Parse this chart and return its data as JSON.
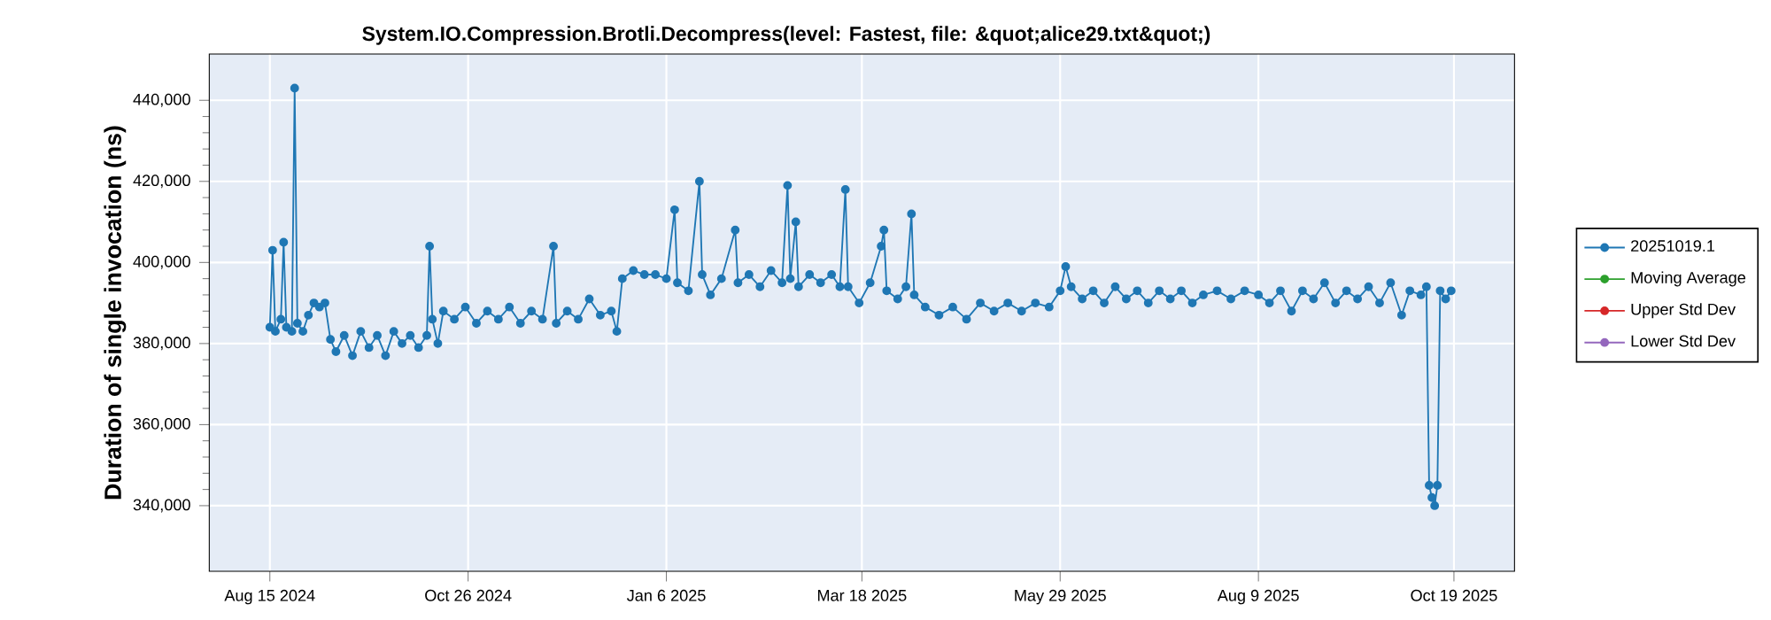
{
  "chart_data": {
    "type": "line",
    "title": "System.IO.Compression.Brotli.Decompress(level: Fastest, file: &quot;alice29.txt&quot;)",
    "ylabel": "Duration of single invocation (ns)",
    "x": [
      "2024-08-15",
      "2024-08-16",
      "2024-08-17",
      "2024-08-19",
      "2024-08-20",
      "2024-08-21",
      "2024-08-23",
      "2024-08-24",
      "2024-08-25",
      "2024-08-27",
      "2024-08-29",
      "2024-08-31",
      "2024-09-02",
      "2024-09-04",
      "2024-09-06",
      "2024-09-08",
      "2024-09-11",
      "2024-09-14",
      "2024-09-17",
      "2024-09-20",
      "2024-09-23",
      "2024-09-26",
      "2024-09-29",
      "2024-10-02",
      "2024-10-05",
      "2024-10-08",
      "2024-10-11",
      "2024-10-12",
      "2024-10-13",
      "2024-10-15",
      "2024-10-17",
      "2024-10-21",
      "2024-10-25",
      "2024-10-29",
      "2024-11-02",
      "2024-11-06",
      "2024-11-10",
      "2024-11-14",
      "2024-11-18",
      "2024-11-22",
      "2024-11-26",
      "2024-11-27",
      "2024-12-01",
      "2024-12-05",
      "2024-12-09",
      "2024-12-13",
      "2024-12-17",
      "2024-12-19",
      "2024-12-21",
      "2024-12-25",
      "2024-12-29",
      "2025-01-02",
      "2025-01-06",
      "2025-01-09",
      "2025-01-10",
      "2025-01-14",
      "2025-01-18",
      "2025-01-19",
      "2025-01-22",
      "2025-01-26",
      "2025-01-31",
      "2025-02-01",
      "2025-02-05",
      "2025-02-09",
      "2025-02-13",
      "2025-02-17",
      "2025-02-19",
      "2025-02-20",
      "2025-02-22",
      "2025-02-23",
      "2025-02-27",
      "2025-03-03",
      "2025-03-07",
      "2025-03-10",
      "2025-03-12",
      "2025-03-13",
      "2025-03-17",
      "2025-03-21",
      "2025-03-25",
      "2025-03-26",
      "2025-03-27",
      "2025-03-31",
      "2025-04-03",
      "2025-04-05",
      "2025-04-06",
      "2025-04-10",
      "2025-04-15",
      "2025-04-20",
      "2025-04-25",
      "2025-04-30",
      "2025-05-05",
      "2025-05-10",
      "2025-05-15",
      "2025-05-20",
      "2025-05-25",
      "2025-05-29",
      "2025-05-31",
      "2025-06-02",
      "2025-06-06",
      "2025-06-10",
      "2025-06-14",
      "2025-06-18",
      "2025-06-22",
      "2025-06-26",
      "2025-06-30",
      "2025-07-04",
      "2025-07-08",
      "2025-07-12",
      "2025-07-16",
      "2025-07-20",
      "2025-07-25",
      "2025-07-30",
      "2025-08-04",
      "2025-08-09",
      "2025-08-13",
      "2025-08-17",
      "2025-08-21",
      "2025-08-25",
      "2025-08-29",
      "2025-09-02",
      "2025-09-06",
      "2025-09-10",
      "2025-09-14",
      "2025-09-18",
      "2025-09-22",
      "2025-09-26",
      "2025-09-30",
      "2025-10-03",
      "2025-10-07",
      "2025-10-09",
      "2025-10-10",
      "2025-10-11",
      "2025-10-12",
      "2025-10-13",
      "2025-10-14",
      "2025-10-16",
      "2025-10-18"
    ],
    "series": [
      {
        "name": "20251019.1",
        "color": "#1f77b4",
        "values": [
          384000,
          403000,
          383000,
          386000,
          405000,
          384000,
          383000,
          443000,
          385000,
          383000,
          387000,
          390000,
          389000,
          390000,
          381000,
          378000,
          382000,
          377000,
          383000,
          379000,
          382000,
          377000,
          383000,
          380000,
          382000,
          379000,
          382000,
          404000,
          386000,
          380000,
          388000,
          386000,
          389000,
          385000,
          388000,
          386000,
          389000,
          385000,
          388000,
          386000,
          404000,
          385000,
          388000,
          386000,
          391000,
          387000,
          388000,
          383000,
          396000,
          398000,
          397000,
          397000,
          396000,
          413000,
          395000,
          393000,
          420000,
          397000,
          392000,
          396000,
          408000,
          395000,
          397000,
          394000,
          398000,
          395000,
          419000,
          396000,
          410000,
          394000,
          397000,
          395000,
          397000,
          394000,
          418000,
          394000,
          390000,
          395000,
          404000,
          408000,
          393000,
          391000,
          394000,
          412000,
          392000,
          389000,
          387000,
          389000,
          386000,
          390000,
          388000,
          390000,
          388000,
          390000,
          389000,
          393000,
          399000,
          394000,
          391000,
          393000,
          390000,
          394000,
          391000,
          393000,
          390000,
          393000,
          391000,
          393000,
          390000,
          392000,
          393000,
          391000,
          393000,
          392000,
          390000,
          393000,
          388000,
          393000,
          391000,
          395000,
          390000,
          393000,
          391000,
          394000,
          390000,
          395000,
          387000,
          393000,
          392000,
          394000,
          345000,
          342000,
          340000,
          345000,
          393000,
          391000,
          393000
        ]
      },
      {
        "name": "Moving Average",
        "color": "#2ca02c",
        "values": [
          null,
          null,
          null,
          null,
          null,
          null,
          null,
          null,
          null,
          null,
          null,
          null,
          null,
          null,
          null,
          null,
          null,
          null,
          null,
          null,
          null,
          null,
          null,
          null,
          null,
          null,
          null,
          null,
          null,
          null,
          null,
          null,
          null,
          null,
          null,
          null,
          null,
          null,
          null,
          null,
          null,
          null,
          null,
          null,
          null,
          null,
          null,
          null,
          null,
          null,
          null,
          null,
          null,
          null,
          null,
          null,
          null,
          null,
          null,
          null,
          null,
          null,
          null,
          null,
          null,
          null,
          null,
          null,
          null,
          null,
          null,
          null,
          null,
          null,
          null,
          null,
          null,
          null,
          null,
          null,
          null,
          null,
          null,
          null,
          null,
          null,
          null,
          null,
          null,
          null,
          null,
          null,
          null,
          null,
          null,
          null,
          null,
          null,
          null,
          null,
          null,
          null,
          null,
          null,
          null,
          null,
          null,
          null,
          null,
          null,
          null,
          null,
          null,
          null,
          null,
          null,
          null,
          null,
          null,
          null,
          null,
          null,
          null,
          null,
          null,
          null,
          null,
          null,
          null,
          null,
          null,
          null,
          null,
          null,
          null,
          null,
          null
        ]
      },
      {
        "name": "Upper Std Dev",
        "color": "#d62728",
        "values": [
          null,
          null,
          null,
          null,
          null,
          null,
          null,
          null,
          null,
          null,
          null,
          null,
          null,
          null,
          null,
          null,
          null,
          null,
          null,
          null,
          null,
          null,
          null,
          null,
          null,
          null,
          null,
          null,
          null,
          null,
          null,
          null,
          null,
          null,
          null,
          null,
          null,
          null,
          null,
          null,
          null,
          null,
          null,
          null,
          null,
          null,
          null,
          null,
          null,
          null,
          null,
          null,
          null,
          null,
          null,
          null,
          null,
          null,
          null,
          null,
          null,
          null,
          null,
          null,
          null,
          null,
          null,
          null,
          null,
          null,
          null,
          null,
          null,
          null,
          null,
          null,
          null,
          null,
          null,
          null,
          null,
          null,
          null,
          null,
          null,
          null,
          null,
          null,
          null,
          null,
          null,
          null,
          null,
          null,
          null,
          null,
          null,
          null,
          null,
          null,
          null,
          null,
          null,
          null,
          null,
          null,
          null,
          null,
          null,
          null,
          null,
          null,
          null,
          null,
          null,
          null,
          null,
          null,
          null,
          null,
          null,
          null,
          null,
          null,
          null,
          null,
          null,
          null,
          null,
          null,
          null,
          null,
          null,
          null,
          null,
          null,
          null
        ]
      },
      {
        "name": "Lower Std Dev",
        "color": "#9467bd",
        "values": [
          null,
          null,
          null,
          null,
          null,
          null,
          null,
          null,
          null,
          null,
          null,
          null,
          null,
          null,
          null,
          null,
          null,
          null,
          null,
          null,
          null,
          null,
          null,
          null,
          null,
          null,
          null,
          null,
          null,
          null,
          null,
          null,
          null,
          null,
          null,
          null,
          null,
          null,
          null,
          null,
          null,
          null,
          null,
          null,
          null,
          null,
          null,
          null,
          null,
          null,
          null,
          null,
          null,
          null,
          null,
          null,
          null,
          null,
          null,
          null,
          null,
          null,
          null,
          null,
          null,
          null,
          null,
          null,
          null,
          null,
          null,
          null,
          null,
          null,
          null,
          null,
          null,
          null,
          null,
          null,
          null,
          null,
          null,
          null,
          null,
          null,
          null,
          null,
          null,
          null,
          null,
          null,
          null,
          null,
          null,
          null,
          null,
          null,
          null,
          null,
          null,
          null,
          null,
          null,
          null,
          null,
          null,
          null,
          null,
          null,
          null,
          null,
          null,
          null,
          null,
          null,
          null,
          null,
          null,
          null,
          null,
          null,
          null,
          null,
          null,
          null,
          null,
          null,
          null,
          null,
          null,
          null,
          null,
          null,
          null,
          null,
          null
        ]
      }
    ],
    "xlim": [
      "2024-07-24",
      "2025-11-10"
    ],
    "xticks": [
      {
        "value": "2024-08-15",
        "label": "Aug 15 2024"
      },
      {
        "value": "2024-10-26",
        "label": "Oct 26 2024"
      },
      {
        "value": "2025-01-06",
        "label": "Jan 6 2025"
      },
      {
        "value": "2025-03-18",
        "label": "Mar 18 2025"
      },
      {
        "value": "2025-05-29",
        "label": "May 29 2025"
      },
      {
        "value": "2025-08-09",
        "label": "Aug 9 2025"
      },
      {
        "value": "2025-10-19",
        "label": "Oct 19 2025"
      }
    ],
    "ylim": [
      323800,
      451400
    ],
    "yticks": [
      {
        "value": 340000,
        "label": "340,000"
      },
      {
        "value": 360000,
        "label": "360,000"
      },
      {
        "value": 380000,
        "label": "380,000"
      },
      {
        "value": 400000,
        "label": "400,000"
      },
      {
        "value": 420000,
        "label": "420,000"
      },
      {
        "value": 440000,
        "label": "440,000"
      }
    ],
    "grid": true,
    "legend": "right",
    "marker": "circle",
    "line_style": "solid"
  }
}
